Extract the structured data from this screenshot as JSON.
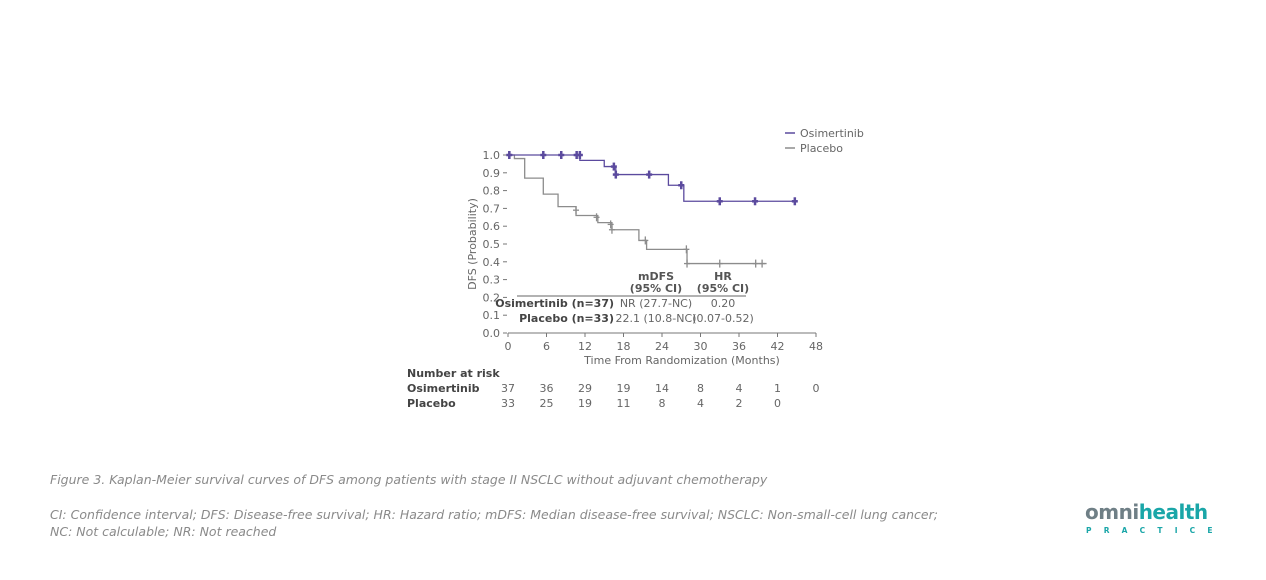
{
  "chart_data": {
    "type": "line",
    "subtype": "kaplan-meier",
    "title": "",
    "xlabel": "Time From Randomization (Months)",
    "ylabel": "DFS (Probability)",
    "xlim": [
      0,
      48
    ],
    "ylim": [
      0,
      1.0
    ],
    "xticks": [
      0,
      6,
      12,
      18,
      24,
      30,
      36,
      42,
      48
    ],
    "yticks": [
      0.0,
      0.1,
      0.2,
      0.3,
      0.4,
      0.5,
      0.6,
      0.7,
      0.8,
      0.9,
      1.0
    ],
    "ytick_labels": [
      "0.0",
      "0.1",
      "0.2",
      "0.3",
      "0.4",
      "0.5",
      "0.6",
      "0.7",
      "0.8",
      "0.9",
      "1.0"
    ],
    "grid": false,
    "legend_position": "top-right",
    "series": [
      {
        "name": "Osimertinib",
        "color": "#5b4a9e",
        "steps": [
          [
            0,
            1.0
          ],
          [
            11.2,
            0.97
          ],
          [
            15.0,
            0.935
          ],
          [
            16.8,
            0.89
          ],
          [
            25.0,
            0.83
          ],
          [
            27.4,
            0.74
          ],
          [
            44.7,
            0.74
          ]
        ],
        "censored": [
          [
            0.2,
            1.0
          ],
          [
            5.5,
            1.0
          ],
          [
            8.3,
            1.0
          ],
          [
            10.7,
            1.0
          ],
          [
            11.2,
            1.0
          ],
          [
            16.5,
            0.935
          ],
          [
            16.8,
            0.89
          ],
          [
            22.0,
            0.89
          ],
          [
            27.0,
            0.83
          ],
          [
            33.0,
            0.74
          ],
          [
            38.5,
            0.74
          ],
          [
            44.7,
            0.74
          ]
        ]
      },
      {
        "name": "Placebo",
        "color": "#8c8c8c",
        "steps": [
          [
            0,
            1.0
          ],
          [
            1.0,
            0.98
          ],
          [
            2.6,
            0.87
          ],
          [
            5.5,
            0.78
          ],
          [
            7.8,
            0.71
          ],
          [
            10.6,
            0.66
          ],
          [
            14.0,
            0.62
          ],
          [
            16.2,
            0.58
          ],
          [
            20.4,
            0.52
          ],
          [
            21.6,
            0.47
          ],
          [
            27.9,
            0.39
          ],
          [
            40.3,
            0.39
          ]
        ],
        "censored": [
          [
            0.3,
            1.0
          ],
          [
            10.6,
            0.69
          ],
          [
            13.8,
            0.65
          ],
          [
            16.0,
            0.61
          ],
          [
            16.2,
            0.58
          ],
          [
            21.4,
            0.52
          ],
          [
            27.8,
            0.47
          ],
          [
            27.9,
            0.39
          ],
          [
            33.0,
            0.39
          ],
          [
            38.6,
            0.39
          ],
          [
            39.6,
            0.39
          ]
        ]
      }
    ],
    "summary_table": {
      "headers": [
        [
          "mDFS",
          "(95% CI)"
        ],
        [
          "HR",
          "(95% CI)"
        ]
      ],
      "rows": [
        {
          "label": "Osimertinib (n=37)",
          "mdfs": "NR (27.7-NC)",
          "hr": "0.20"
        },
        {
          "label": "Placebo (n=33)",
          "mdfs": "22.1 (10.8-NC)",
          "hr": "(0.07-0.52)"
        }
      ]
    },
    "number_at_risk": {
      "title": "Number at risk",
      "rows": [
        {
          "label": "Osimertinib",
          "values": [
            "37",
            "36",
            "29",
            "19",
            "14",
            "8",
            "4",
            "1",
            "0"
          ]
        },
        {
          "label": "Placebo",
          "values": [
            "33",
            "25",
            "19",
            "11",
            "8",
            "4",
            "2",
            "0"
          ]
        }
      ]
    }
  },
  "caption": {
    "figure": "Figure 3. Kaplan-Meier survival curves of DFS among patients with stage II NSCLC without adjuvant chemotherapy",
    "abbreviations_line1": "CI: Confidence interval; DFS: Disease-free survival; HR: Hazard ratio; mDFS: Median disease-free survival; NSCLC: Non-small-cell lung cancer;",
    "abbreviations_line2": "NC: Not calculable; NR: Not reached"
  },
  "logo": {
    "brand_part1": "omni",
    "brand_part2": "health",
    "sub": "PRACTICE",
    "colors": {
      "gray": "#6f7f86",
      "teal": "#1aa6a8"
    }
  }
}
